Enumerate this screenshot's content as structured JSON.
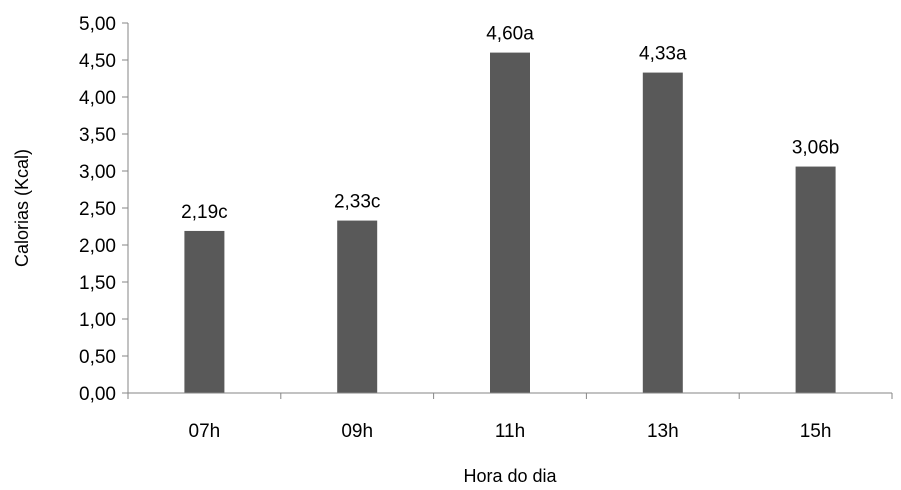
{
  "chart_data": {
    "type": "bar",
    "categories": [
      "07h",
      "09h",
      "11h",
      "13h",
      "15h"
    ],
    "values": [
      2.19,
      2.33,
      4.6,
      4.33,
      3.06
    ],
    "data_labels": [
      "2,19c",
      "2,33c",
      "4,60a",
      "4,33a",
      "3,06b"
    ],
    "xlabel": "Hora do dia",
    "ylabel": "Calorias (Kcal)",
    "ylim": [
      0,
      5
    ],
    "yticks": [
      0,
      0.5,
      1,
      1.5,
      2,
      2.5,
      3,
      3.5,
      4,
      4.5,
      5
    ],
    "ytick_labels": [
      "0,00",
      "0,50",
      "1,00",
      "1,50",
      "2,00",
      "2,50",
      "3,00",
      "3,50",
      "4,00",
      "4,50",
      "5,00"
    ],
    "grid": false,
    "legend": "none",
    "colors": {
      "bar": "#595959",
      "axis": "#868686",
      "text": "#000000"
    }
  }
}
